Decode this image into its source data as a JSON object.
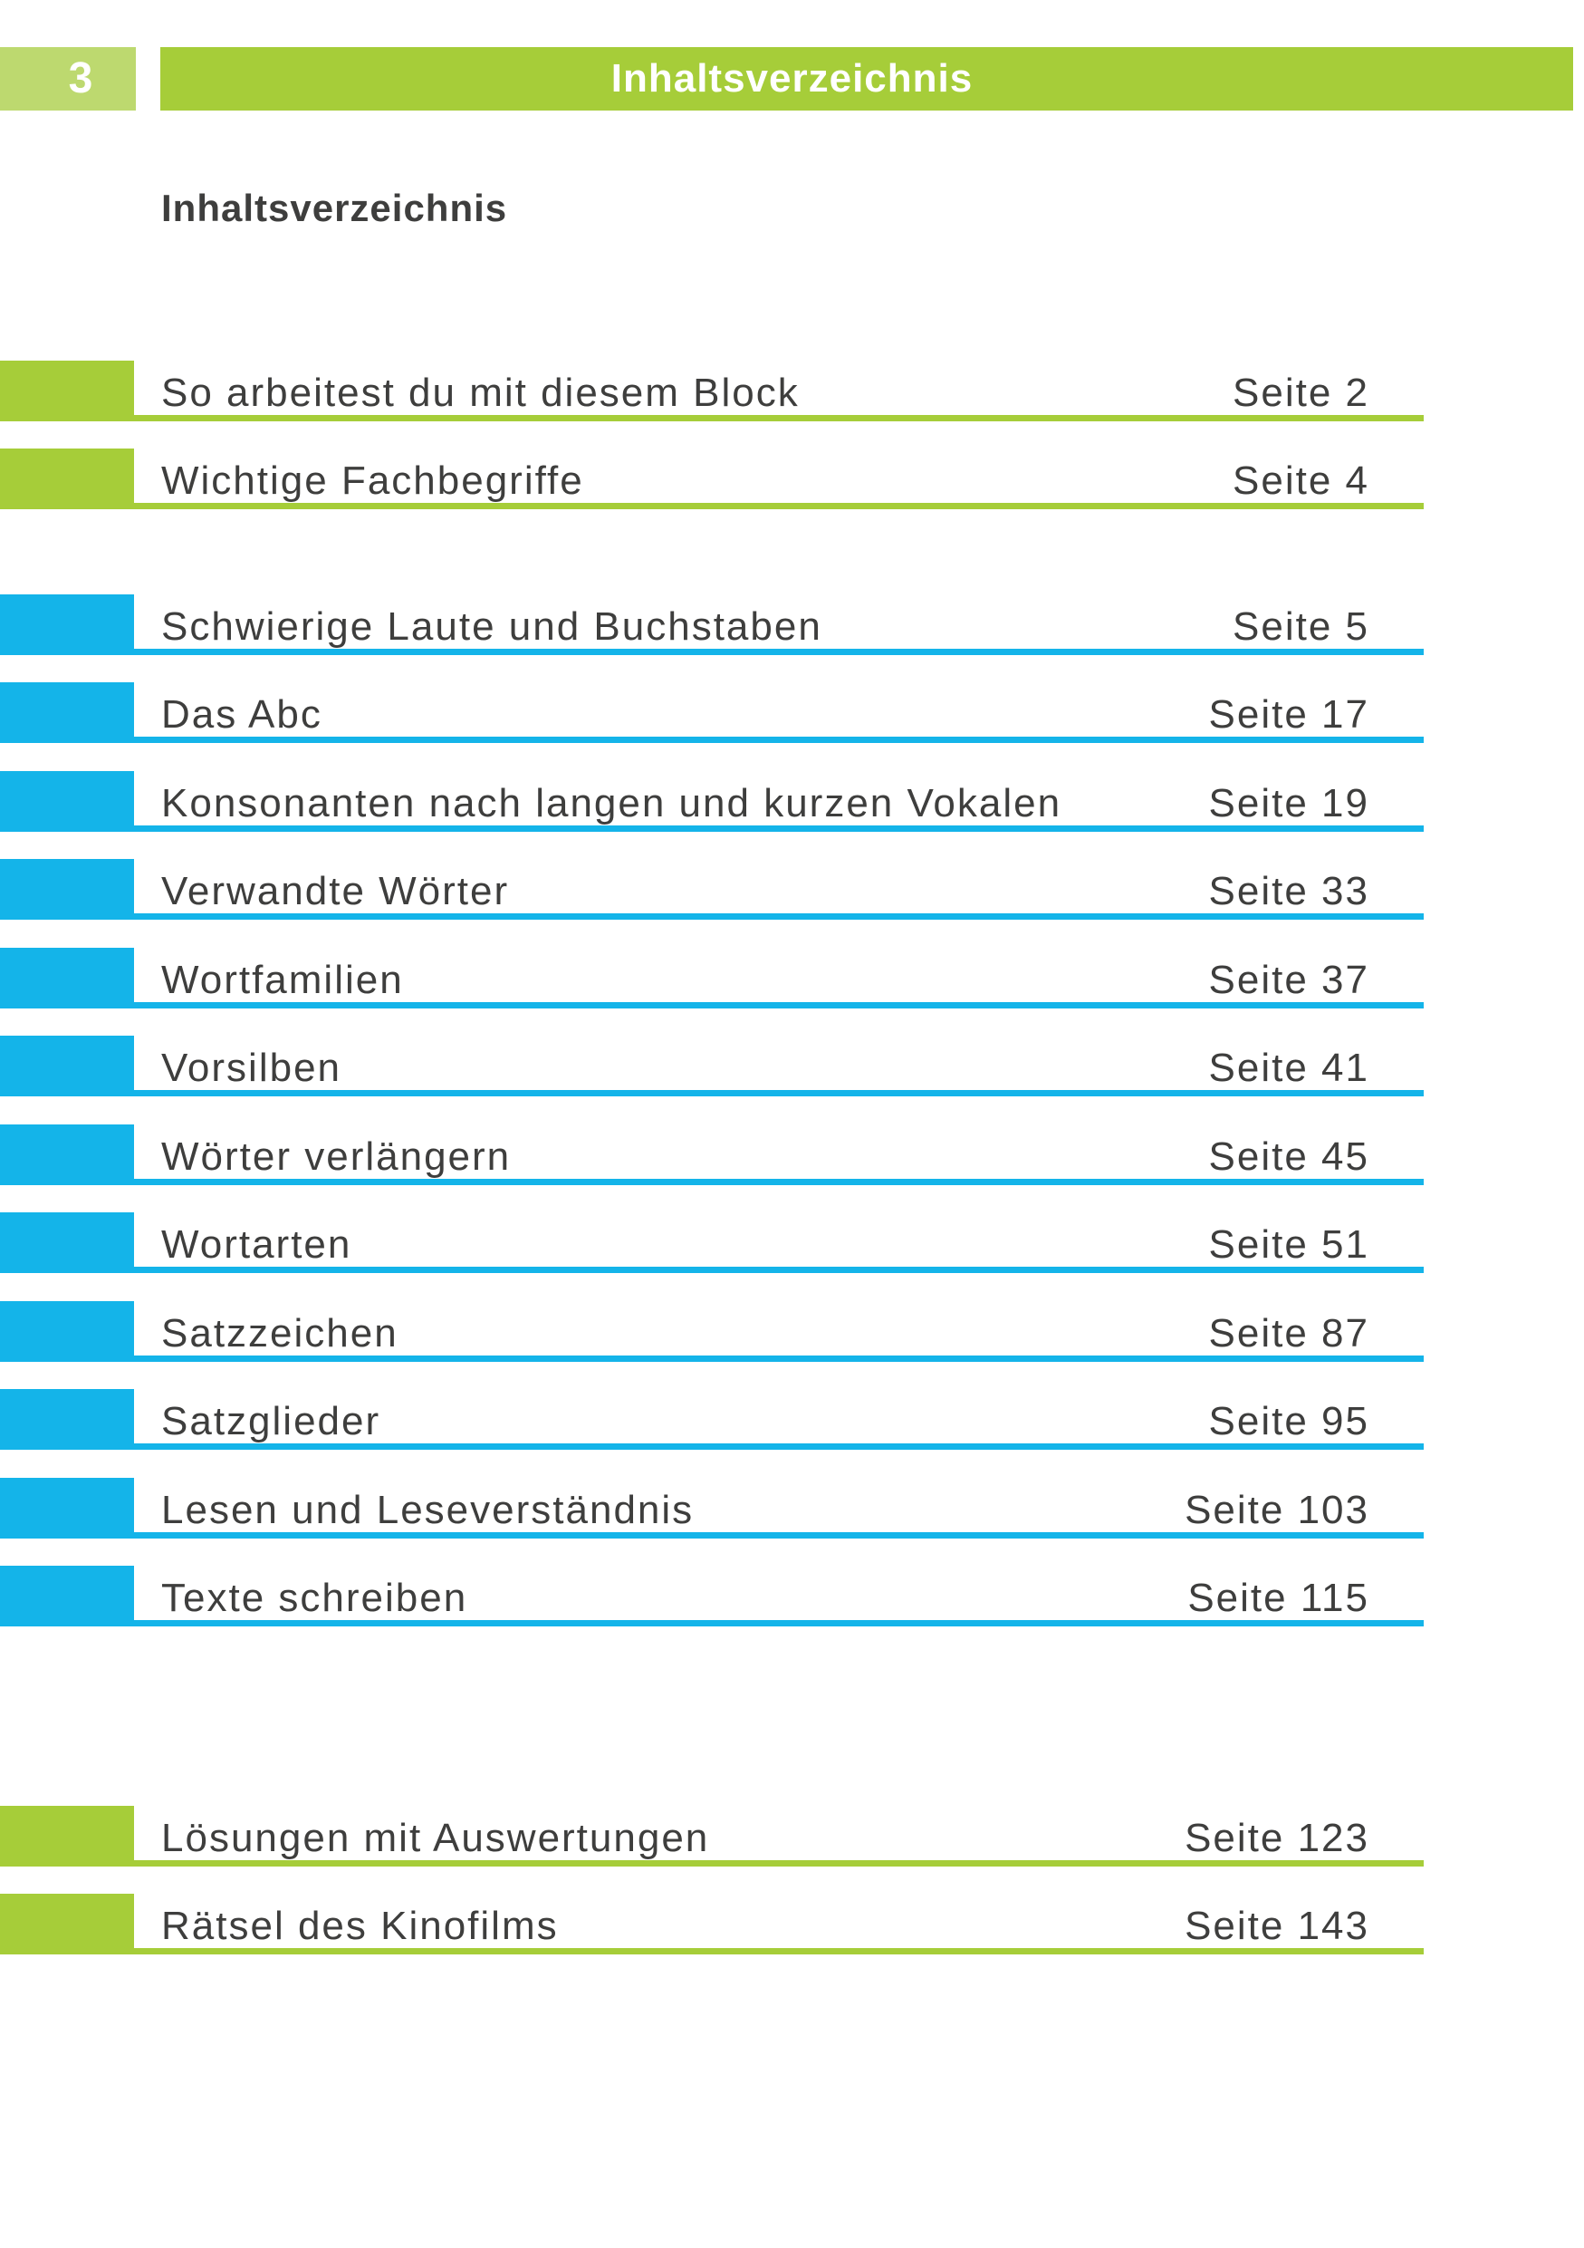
{
  "page": {
    "number": "3",
    "band_title": "Inhaltsverzeichnis",
    "heading": "Inhaltsverzeichnis"
  },
  "colors": {
    "green": "#a6cd39",
    "light_green": "#bdd96f",
    "blue": "#14b4e9",
    "text": "#3e3e3d"
  },
  "toc": {
    "sections": [
      {
        "color": "green",
        "items": [
          {
            "title": "So arbeitest du mit diesem Block",
            "page_label": "Seite 2"
          },
          {
            "title": "Wichtige Fachbegriffe",
            "page_label": "Seite 4"
          }
        ]
      },
      {
        "color": "blue",
        "items": [
          {
            "title": "Schwierige Laute und Buchstaben",
            "page_label": "Seite 5"
          },
          {
            "title": "Das Abc",
            "page_label": "Seite 17"
          },
          {
            "title": "Konsonanten nach langen und kurzen Vokalen",
            "page_label": "Seite 19"
          },
          {
            "title": "Verwandte Wörter",
            "page_label": "Seite 33"
          },
          {
            "title": "Wortfamilien",
            "page_label": "Seite 37"
          },
          {
            "title": "Vorsilben",
            "page_label": "Seite 41"
          },
          {
            "title": "Wörter verlängern",
            "page_label": "Seite 45"
          },
          {
            "title": "Wortarten",
            "page_label": "Seite 51"
          },
          {
            "title": "Satzzeichen",
            "page_label": "Seite 87"
          },
          {
            "title": "Satzglieder",
            "page_label": "Seite 95"
          },
          {
            "title": "Lesen und Leseverständnis",
            "page_label": "Seite 103"
          },
          {
            "title": "Texte schreiben",
            "page_label": "Seite 115"
          }
        ]
      },
      {
        "color": "green",
        "items": [
          {
            "title": "Lösungen mit Auswertungen",
            "page_label": "Seite 123"
          },
          {
            "title": "Rätsel des Kinofilms",
            "page_label": "Seite 143"
          }
        ]
      }
    ]
  }
}
